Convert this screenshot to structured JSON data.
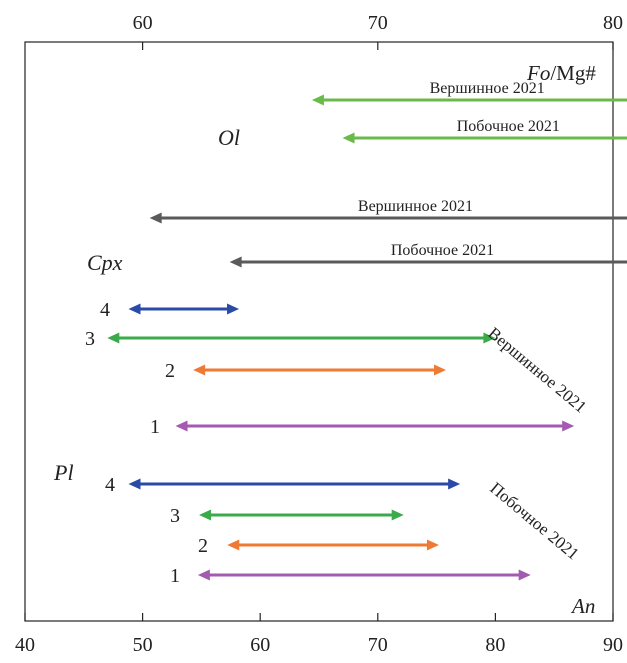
{
  "chart_data": {
    "type": "range",
    "top_axis": {
      "label_italic": "Fo",
      "label_rest": "/Mg#",
      "range": [
        55,
        80
      ],
      "ticks": [
        "60",
        "70",
        "80"
      ]
    },
    "bottom_axis": {
      "label": "An",
      "range": [
        40,
        90
      ],
      "ticks": [
        "40",
        "50",
        "60",
        "70",
        "80",
        "90"
      ]
    },
    "groups": [
      {
        "label": "Ol",
        "axis": "top",
        "color": "#6aba4a",
        "series": [
          {
            "name": "Вершинное 2021",
            "min": 67.2,
            "max": 82.1
          },
          {
            "name": "Побочное 2021",
            "min": 68.5,
            "max": 82.6
          }
        ]
      },
      {
        "label": "Cpx",
        "axis": "top",
        "color": "#5a5a5a",
        "series": [
          {
            "name": "Вершинное 2021",
            "min": 60.3,
            "max": 82.9
          },
          {
            "name": "Побочное 2021",
            "min": 63.7,
            "max": 81.8
          }
        ]
      },
      {
        "label": "Pl",
        "axis": "bottom",
        "subgroups": [
          {
            "name": "Вершинное 2021",
            "series": [
              {
                "label": "4",
                "color": "#2a4aa8",
                "min": 48.8,
                "max": 58.2
              },
              {
                "label": "3",
                "color": "#3aaa4a",
                "min": 47.0,
                "max": 80.0
              },
              {
                "label": "2",
                "color": "#ee7a33",
                "min": 54.3,
                "max": 75.8
              },
              {
                "label": "1",
                "color": "#a45ab0",
                "min": 52.8,
                "max": 86.7
              }
            ]
          },
          {
            "name": "Побочное 2021",
            "series": [
              {
                "label": "4",
                "color": "#2a4aa8",
                "min": 48.8,
                "max": 77.0
              },
              {
                "label": "3",
                "color": "#3aaa4a",
                "min": 54.8,
                "max": 72.2
              },
              {
                "label": "2",
                "color": "#ee7a33",
                "min": 57.2,
                "max": 75.2
              },
              {
                "label": "1",
                "color": "#a45ab0",
                "min": 54.7,
                "max": 83.0
              }
            ]
          }
        ]
      }
    ]
  }
}
